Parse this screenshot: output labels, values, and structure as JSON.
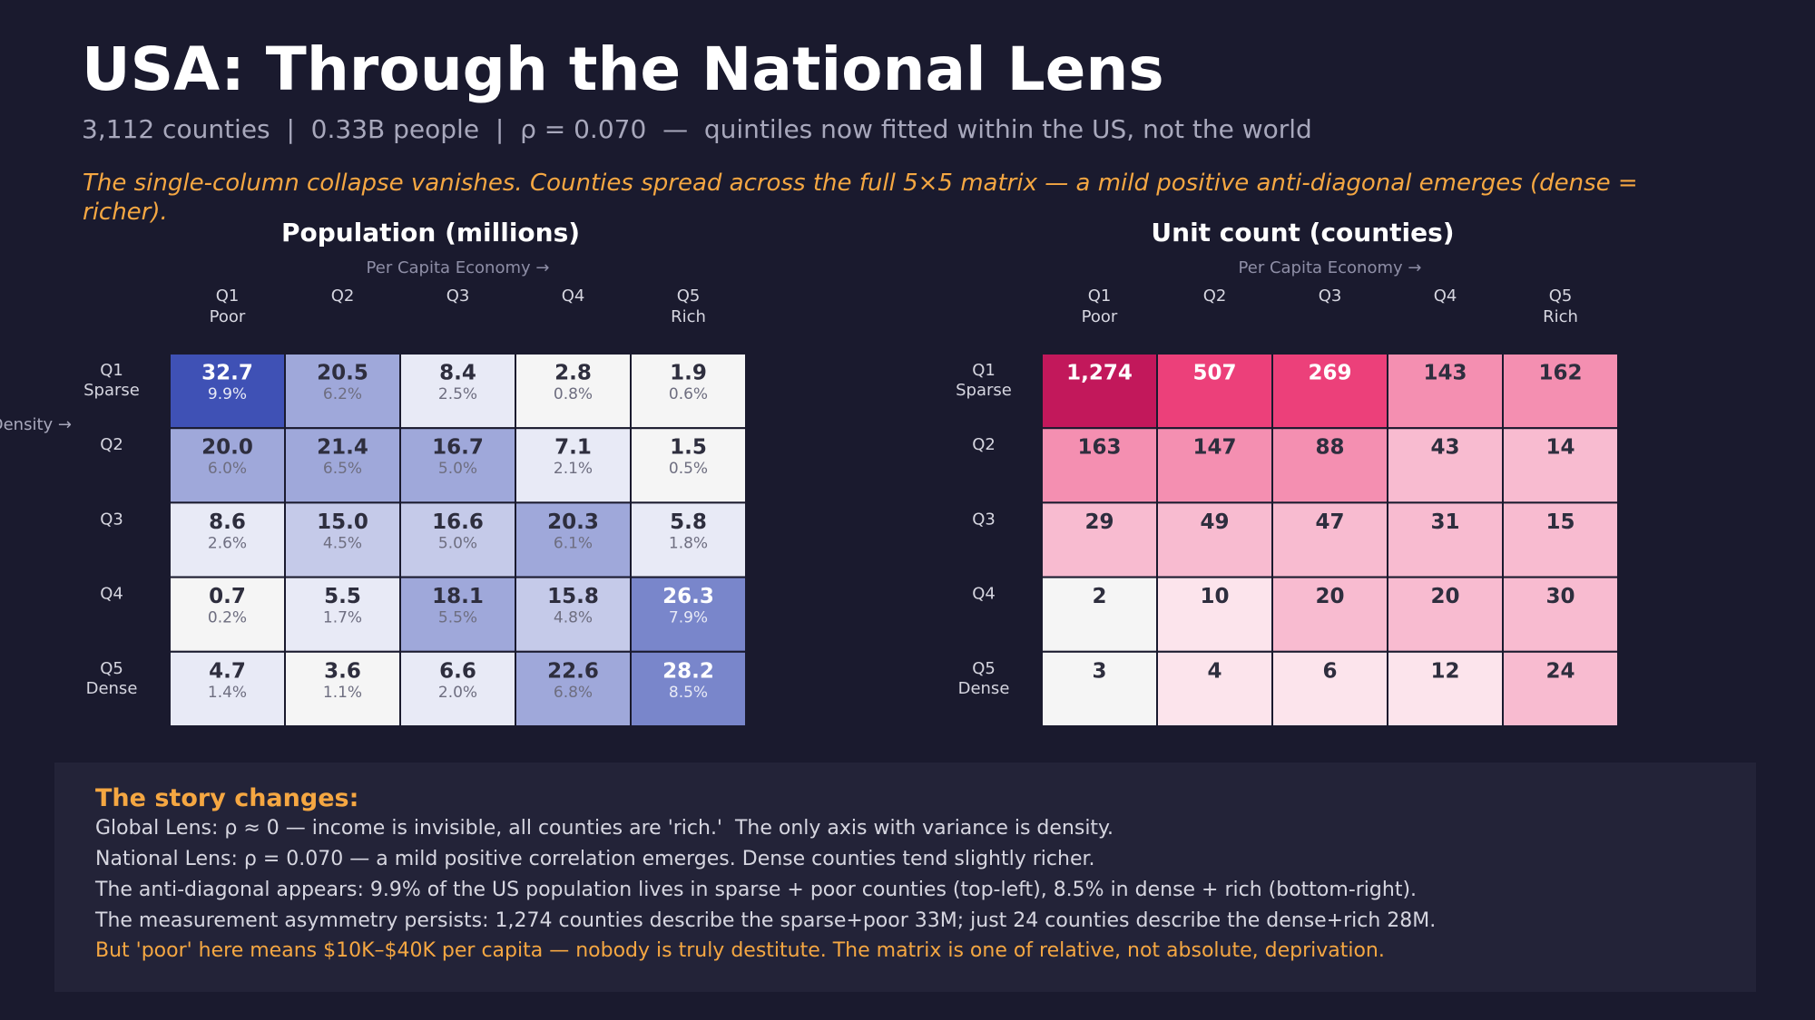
{
  "title": "USA: Through the National Lens",
  "subtitle": "3,112 counties  |  0.33B people  |  ρ = 0.070  —  quintiles now fitted within the US, not the world",
  "note": "The single-column collapse vanishes. Counties spread across the full 5×5 matrix — a mild positive anti-diagonal emerges (dense = richer).",
  "chart_data": [
    {
      "type": "heatmap",
      "title": "Population (millions)",
      "x_label": "Per Capita Economy →",
      "y_label": "Density →",
      "x_categories": [
        [
          "Q1",
          "Poor"
        ],
        [
          "Q2"
        ],
        [
          "Q3"
        ],
        [
          "Q4"
        ],
        [
          "Q5",
          "Rich"
        ]
      ],
      "y_categories": [
        [
          "Q1",
          "Sparse"
        ],
        [
          "Q2"
        ],
        [
          "Q3"
        ],
        [
          "Q4"
        ],
        [
          "Q5",
          "Dense"
        ]
      ],
      "values": [
        [
          32.7,
          20.5,
          8.4,
          2.8,
          1.9
        ],
        [
          20,
          21.4,
          16.7,
          7.1,
          1.5
        ],
        [
          8.6,
          15,
          16.6,
          20.3,
          5.8
        ],
        [
          0.7,
          5.5,
          18.1,
          15.8,
          26.3
        ],
        [
          4.7,
          3.6,
          6.6,
          22.6,
          28.2
        ]
      ],
      "value_labels": [
        [
          "32.7",
          "20.5",
          "8.4",
          "2.8",
          "1.9"
        ],
        [
          "20.0",
          "21.4",
          "16.7",
          "7.1",
          "1.5"
        ],
        [
          "8.6",
          "15.0",
          "16.6",
          "20.3",
          "5.8"
        ],
        [
          "0.7",
          "5.5",
          "18.1",
          "15.8",
          "26.3"
        ],
        [
          "4.7",
          "3.6",
          "6.6",
          "22.6",
          "28.2"
        ]
      ],
      "shares": [
        [
          9.9,
          6.2,
          2.5,
          0.8,
          0.6
        ],
        [
          6,
          6.5,
          5,
          2.1,
          0.5
        ],
        [
          2.6,
          4.5,
          5,
          6.1,
          1.8
        ],
        [
          0.2,
          1.7,
          5.5,
          4.8,
          7.9
        ],
        [
          1.4,
          1.1,
          2,
          6.8,
          8.5
        ]
      ],
      "share_labels": [
        [
          "9.9%",
          "6.2%",
          "2.5%",
          "0.8%",
          "0.6%"
        ],
        [
          "6.0%",
          "6.5%",
          "5.0%",
          "2.1%",
          "0.5%"
        ],
        [
          "2.6%",
          "4.5%",
          "5.0%",
          "6.1%",
          "1.8%"
        ],
        [
          "0.2%",
          "1.7%",
          "5.5%",
          "4.8%",
          "7.9%"
        ],
        [
          "1.4%",
          "1.1%",
          "2.0%",
          "6.8%",
          "8.5%"
        ]
      ],
      "color_scale": "linear",
      "colors": [
        "#f5f5f5",
        "#e8eaf6",
        "#c5cae9",
        "#9fa8da",
        "#7986cb",
        "#3f51b5"
      ]
    },
    {
      "type": "heatmap",
      "title": "Unit count (counties)",
      "x_label": "Per Capita Economy →",
      "x_categories": [
        [
          "Q1",
          "Poor"
        ],
        [
          "Q2"
        ],
        [
          "Q3"
        ],
        [
          "Q4"
        ],
        [
          "Q5",
          "Rich"
        ]
      ],
      "y_categories": [
        [
          "Q1",
          "Sparse"
        ],
        [
          "Q2"
        ],
        [
          "Q3"
        ],
        [
          "Q4"
        ],
        [
          "Q5",
          "Dense"
        ]
      ],
      "values": [
        [
          1274,
          507,
          269,
          143,
          162
        ],
        [
          163,
          147,
          88,
          43,
          14
        ],
        [
          29,
          49,
          47,
          31,
          15
        ],
        [
          2,
          10,
          20,
          20,
          30
        ],
        [
          3,
          4,
          6,
          12,
          24
        ]
      ],
      "value_labels": [
        [
          "1,274",
          "507",
          "269",
          "143",
          "162"
        ],
        [
          "163",
          "147",
          "88",
          "43",
          "14"
        ],
        [
          "29",
          "49",
          "47",
          "31",
          "15"
        ],
        [
          "2",
          "10",
          "20",
          "20",
          "30"
        ],
        [
          "3",
          "4",
          "6",
          "12",
          "24"
        ]
      ],
      "color_scale": "log",
      "colors": [
        "#f5f5f5",
        "#fce4ec",
        "#f8bbd0",
        "#f48fb1",
        "#ec407a",
        "#c2185b"
      ]
    }
  ],
  "story": {
    "heading": "The story changes:",
    "lines": [
      "Global Lens: ρ ≈ 0 — income is invisible, all counties are 'rich.'  The only axis with variance is density.",
      "National Lens: ρ = 0.070 — a mild positive correlation emerges. Dense counties tend slightly richer.",
      "The anti-diagonal appears: 9.9% of the US population lives in sparse + poor counties (top-left), 8.5% in dense + rich (bottom-right).",
      "The measurement asymmetry persists: 1,274 counties describe the sparse+poor 33M; just 24 counties describe the dense+rich 28M."
    ],
    "conclusion": "But 'poor' here means $10K–$40K per capita — nobody is truly destitute. The matrix is one of relative, not absolute, deprivation."
  }
}
